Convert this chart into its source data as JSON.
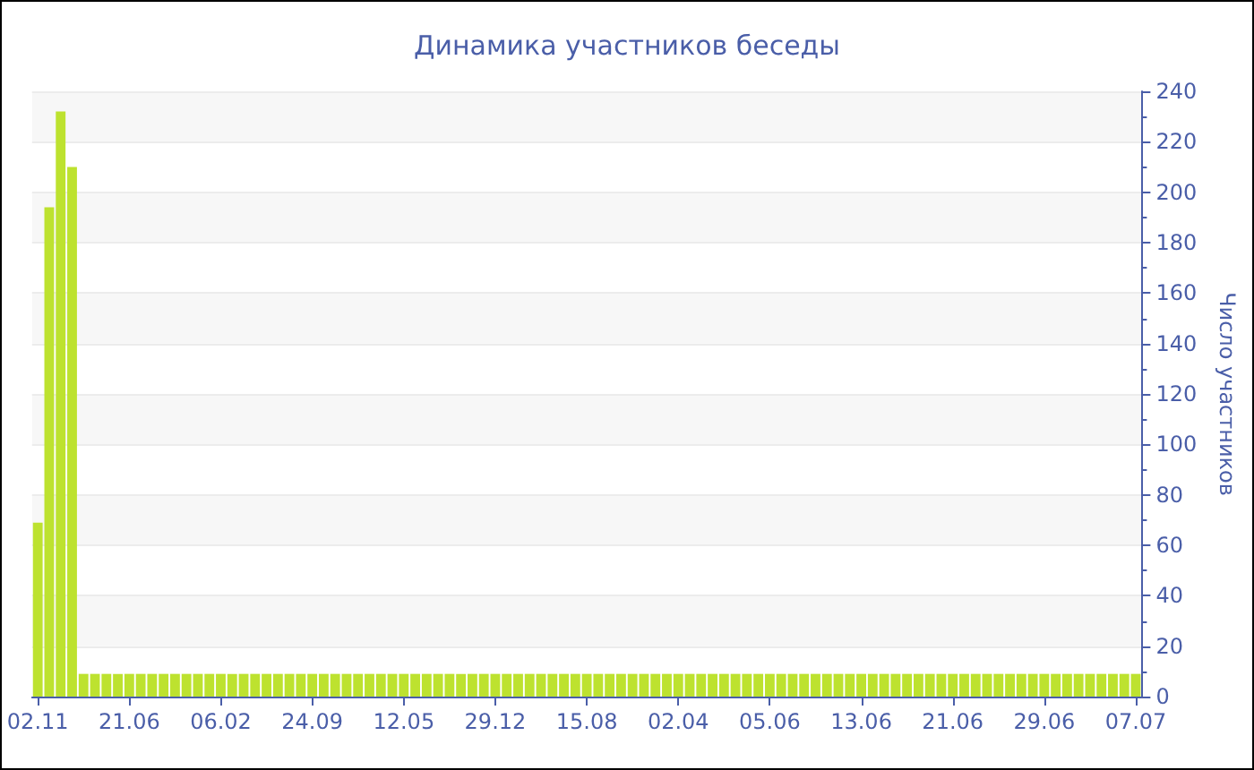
{
  "chart_data": {
    "type": "bar",
    "title": "Динамика участников беседы",
    "ylabel": "Число участников",
    "categories": [
      "02.11",
      null,
      null,
      null,
      null,
      null,
      null,
      null,
      "21.06",
      null,
      null,
      null,
      null,
      null,
      null,
      null,
      "06.02",
      null,
      null,
      null,
      null,
      null,
      null,
      null,
      "24.09",
      null,
      null,
      null,
      null,
      null,
      null,
      null,
      "12.05",
      null,
      null,
      null,
      null,
      null,
      null,
      null,
      "29.12",
      null,
      null,
      null,
      null,
      null,
      null,
      null,
      "15.08",
      null,
      null,
      null,
      null,
      null,
      null,
      null,
      "02.04",
      null,
      null,
      null,
      null,
      null,
      null,
      null,
      "05.06",
      null,
      null,
      null,
      null,
      null,
      null,
      null,
      "13.06",
      null,
      null,
      null,
      null,
      null,
      null,
      null,
      "21.06",
      null,
      null,
      null,
      null,
      null,
      null,
      null,
      "29.06",
      null,
      null,
      null,
      null,
      null,
      null,
      null,
      "07.07"
    ],
    "values": [
      69,
      194,
      232,
      210,
      9,
      9,
      9,
      9,
      9,
      9,
      9,
      9,
      9,
      9,
      9,
      9,
      9,
      9,
      9,
      9,
      9,
      9,
      9,
      9,
      9,
      9,
      9,
      9,
      9,
      9,
      9,
      9,
      9,
      9,
      9,
      9,
      9,
      9,
      9,
      9,
      9,
      9,
      9,
      9,
      9,
      9,
      9,
      9,
      9,
      9,
      9,
      9,
      9,
      9,
      9,
      9,
      9,
      9,
      9,
      9,
      9,
      9,
      9,
      9,
      9,
      9,
      9,
      9,
      9,
      9,
      9,
      9,
      9,
      9,
      9,
      9,
      9,
      9,
      9,
      9,
      9,
      9,
      9,
      9,
      9,
      9,
      9,
      9,
      9,
      9,
      9,
      9,
      9,
      9,
      9,
      9,
      9
    ],
    "color": "#bde22f",
    "ylim": [
      0,
      240
    ],
    "yticks": [
      0,
      20,
      40,
      60,
      80,
      100,
      120,
      140,
      160,
      180,
      200,
      220,
      240
    ],
    "grid": "y"
  }
}
